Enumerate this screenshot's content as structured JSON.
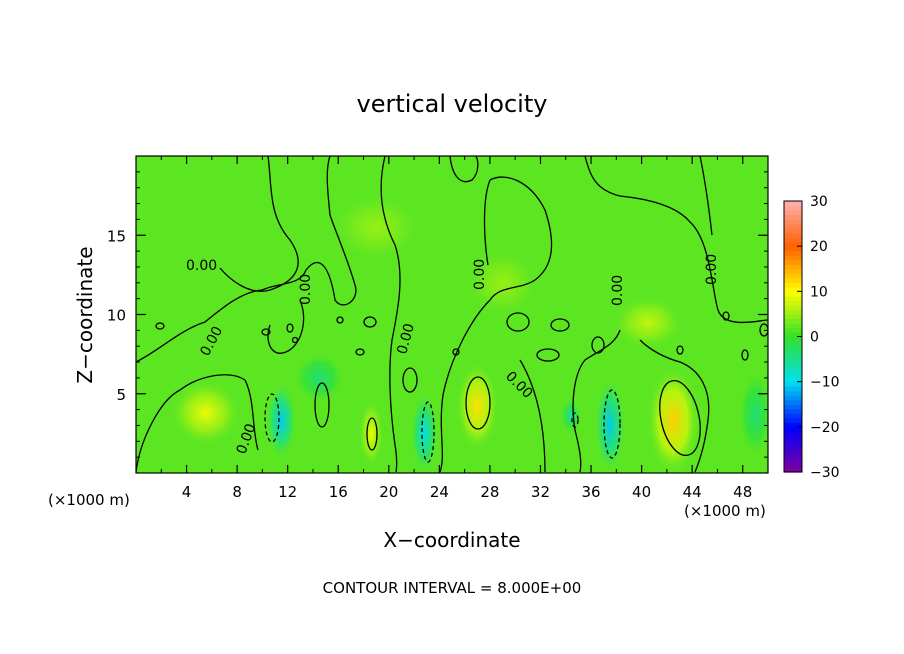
{
  "chart_data": {
    "type": "heatmap",
    "title": "vertical velocity",
    "xlabel": "X−coordinate",
    "ylabel": "Z−coordinate",
    "x_unit_left": "(×1000 m)",
    "x_unit_right": "(×1000 m)",
    "footer": "CONTOUR INTERVAL = 8.000E+00",
    "xlim": [
      0,
      50
    ],
    "ylim": [
      0,
      20
    ],
    "x_ticks": [
      4,
      8,
      12,
      16,
      20,
      24,
      28,
      32,
      36,
      40,
      44,
      48
    ],
    "x_tick_labels": [
      "4",
      "8",
      "12",
      "16",
      "20",
      "24",
      "28",
      "32",
      "36",
      "40",
      "44",
      "48"
    ],
    "y_ticks": [
      5,
      10,
      15
    ],
    "y_tick_labels": [
      "5",
      "10",
      "15"
    ],
    "contour_label": "0.00",
    "colorbar": {
      "range": [
        -30,
        30
      ],
      "ticks": [
        30,
        20,
        10,
        0,
        -10,
        -20,
        -30
      ],
      "tick_labels": [
        "30",
        "20",
        "10",
        "0",
        "−10",
        "−20",
        "−30"
      ],
      "colors": {
        "-30": "#8000a0",
        "-20": "#0000ff",
        "-10": "#00e0f0",
        "0": "#33e02a",
        "10": "#ffff00",
        "20": "#ff6000",
        "30": "#ffb0b0"
      }
    },
    "background_value": 2,
    "features": [
      {
        "x": 11.5,
        "z": 3.3,
        "value": -11,
        "rx": 0.9,
        "rz": 1.8
      },
      {
        "x": 22.8,
        "z": 2.5,
        "value": -10,
        "rx": 0.8,
        "rz": 1.9
      },
      {
        "x": 37.5,
        "z": 3.0,
        "value": -11,
        "rx": 0.9,
        "rz": 2.2
      },
      {
        "x": 34.4,
        "z": 3.6,
        "value": -6,
        "rx": 0.6,
        "rz": 0.8
      },
      {
        "x": 49.0,
        "z": 3.7,
        "value": -4,
        "rx": 1.0,
        "rz": 2.0
      },
      {
        "x": 14.5,
        "z": 6.0,
        "value": -4,
        "rx": 1.5,
        "rz": 1.2
      },
      {
        "x": 5.5,
        "z": 3.8,
        "value": 9,
        "rx": 2.0,
        "rz": 1.5
      },
      {
        "x": 18.6,
        "z": 2.5,
        "value": 9,
        "rx": 0.7,
        "rz": 1.5
      },
      {
        "x": 27.0,
        "z": 4.2,
        "value": 12,
        "rx": 1.2,
        "rz": 2.0
      },
      {
        "x": 42.5,
        "z": 3.3,
        "value": 13,
        "rx": 1.5,
        "rz": 2.5
      },
      {
        "x": 19.0,
        "z": 15.5,
        "value": 5,
        "rx": 2.5,
        "rz": 1.5
      },
      {
        "x": 29.0,
        "z": 12.0,
        "value": 5,
        "rx": 2.0,
        "rz": 1.5
      },
      {
        "x": 40.5,
        "z": 9.5,
        "value": 7,
        "rx": 2.0,
        "rz": 1.2
      }
    ]
  }
}
